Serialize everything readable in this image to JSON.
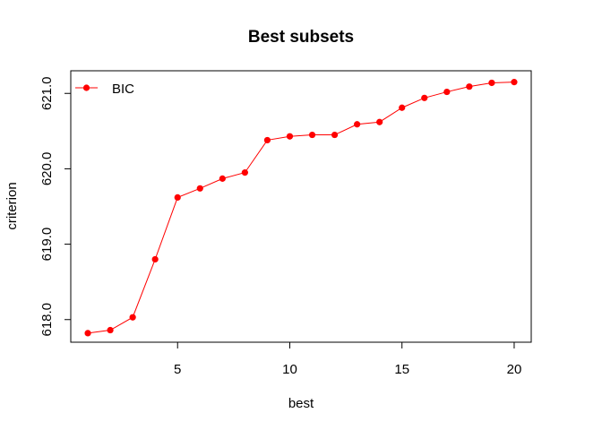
{
  "chart_data": {
    "type": "line",
    "title": "Best subsets",
    "xlabel": "best",
    "ylabel": "criterion",
    "x": [
      1,
      2,
      3,
      4,
      5,
      6,
      7,
      8,
      9,
      10,
      11,
      12,
      13,
      14,
      15,
      16,
      17,
      18,
      19,
      20
    ],
    "series": [
      {
        "name": "BIC",
        "color": "#ff0000",
        "values": [
          617.82,
          617.86,
          618.03,
          618.8,
          619.62,
          619.74,
          619.87,
          619.95,
          620.38,
          620.43,
          620.45,
          620.45,
          620.59,
          620.62,
          620.81,
          620.94,
          621.02,
          621.09,
          621.14,
          621.15
        ]
      }
    ],
    "xlim": [
      0.24,
      20.76
    ],
    "ylim": [
      617.7,
      621.3
    ],
    "xticks": [
      "5",
      "10",
      "15",
      "20"
    ],
    "yticks": [
      "618.0",
      "619.0",
      "620.0",
      "621.0"
    ],
    "grid": false,
    "legend_position": "top-left"
  }
}
